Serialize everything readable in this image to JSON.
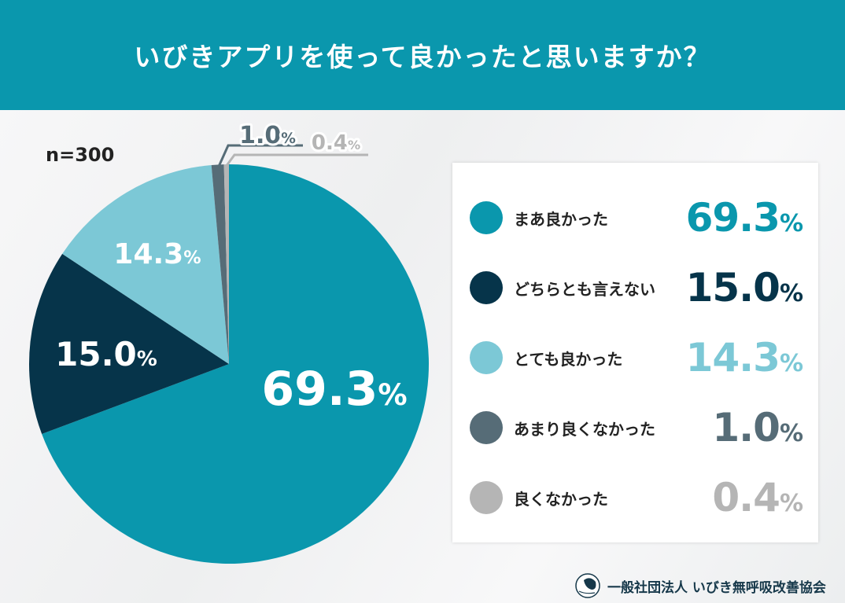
{
  "header": {
    "title": "いびきアプリを使って良かったと思いますか？"
  },
  "sample": "n=300",
  "footer": {
    "org": "一般社団法人 いびき無呼吸改善協会"
  },
  "chart_data": {
    "type": "pie",
    "title": "いびきアプリを使って良かったと思いますか？",
    "unit": "%",
    "start": "top-clockwise",
    "legend_position": "right",
    "slices": [
      {
        "label": "まあ良かった",
        "value": 69.3,
        "display": "69.3",
        "color": "#0a97ad"
      },
      {
        "label": "どちらとも言えない",
        "value": 15.0,
        "display": "15.0",
        "color": "#06344a"
      },
      {
        "label": "とても良かった",
        "value": 14.3,
        "display": "14.3",
        "color": "#7cc8d6"
      },
      {
        "label": "あまり良くなかった",
        "value": 1.0,
        "display": "1.0",
        "color": "#566c77"
      },
      {
        "label": "良くなかった",
        "value": 0.4,
        "display": "0.4",
        "color": "#b5b5b5"
      }
    ]
  }
}
